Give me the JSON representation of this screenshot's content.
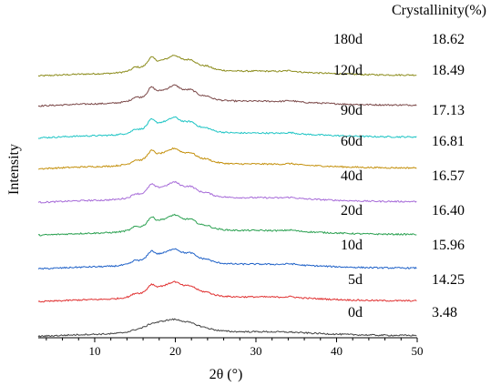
{
  "chart_data": {
    "type": "line",
    "xlabel": "2θ (°)",
    "ylabel": "Intensity",
    "xlim": [
      3,
      50
    ],
    "xticks": [
      10,
      20,
      30,
      40,
      50
    ],
    "legend_header": "Crystallinity(%)",
    "grid": false,
    "peaks_2theta": [
      15.0,
      17.0,
      19.8,
      22.0,
      24.0,
      34.0
    ],
    "series": [
      {
        "name": "180d",
        "crystallinity": "18.62",
        "color": "#8b8b1a"
      },
      {
        "name": "120d",
        "crystallinity": "18.49",
        "color": "#7a4747"
      },
      {
        "name": "90d",
        "crystallinity": "17.13",
        "color": "#1cc4c4"
      },
      {
        "name": "60d",
        "crystallinity": "16.81",
        "color": "#c4900c"
      },
      {
        "name": "40d",
        "crystallinity": "16.57",
        "color": "#a66ad8"
      },
      {
        "name": "20d",
        "crystallinity": "16.40",
        "color": "#2aa050"
      },
      {
        "name": "10d",
        "crystallinity": "15.96",
        "color": "#2062c8"
      },
      {
        "name": "5d",
        "crystallinity": "14.25",
        "color": "#e03030"
      },
      {
        "name": "0d",
        "crystallinity": "3.48",
        "color": "#404040"
      }
    ]
  }
}
